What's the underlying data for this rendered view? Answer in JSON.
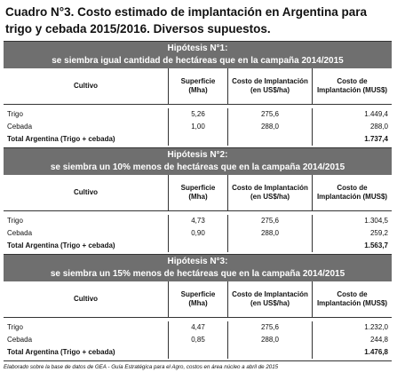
{
  "title": "Cuadro N°3. Costo estimado de implantación en Argentina para trigo y cebada 2015/2016. Diversos supuestos.",
  "sections": [
    {
      "heading": "Hipótesis N°1:",
      "subheading": "se siembra igual cantidad de hectáreas que en la campaña 2014/2015",
      "columns": [
        "Cultivo",
        "Superficie (Mha)",
        "Costo de Implantación (en US$/ha)",
        "Costo de Implantación (MUS$)"
      ],
      "rows": [
        [
          "Trigo",
          "5,26",
          "275,6",
          "1.449,4"
        ],
        [
          "Cebada",
          "1,00",
          "288,0",
          "288,0"
        ]
      ],
      "total": {
        "label": "Total Argentina (Trigo + cebada)",
        "value": "1.737,4"
      }
    },
    {
      "heading": "Hipótesis N°2:",
      "subheading": "se siembra un 10% menos de hectáreas que en la campaña 2014/2015",
      "columns": [
        "Cultivo",
        "Superficie (Mha)",
        "Costo de Implantación (en US$/ha)",
        "Costo de Implantación (MUS$)"
      ],
      "rows": [
        [
          "Trigo",
          "4,73",
          "275,6",
          "1.304,5"
        ],
        [
          "Cebada",
          "0,90",
          "288,0",
          "259,2"
        ]
      ],
      "total": {
        "label": "Total Argentina (Trigo + cebada)",
        "value": "1.563,7"
      }
    },
    {
      "heading": "Hipótesis N°3:",
      "subheading": "se siembra un 15% menos de hectáreas que en la campaña 2014/2015",
      "columns": [
        "Cultivo",
        "Superficie (Mha)",
        "Costo de Implantación (en US$/ha)",
        "Costo de Implantación (MUS$)"
      ],
      "rows": [
        [
          "Trigo",
          "4,47",
          "275,6",
          "1.232,0"
        ],
        [
          "Cebada",
          "0,85",
          "288,0",
          "244,8"
        ]
      ],
      "total": {
        "label": "Total Argentina (Trigo + cebada)",
        "value": "1.476,8"
      }
    }
  ],
  "footer": "Elaborado sobre la base de datos de GEA - Guía Estratégica para el Agro, costos en área núcleo a abril de 2015"
}
